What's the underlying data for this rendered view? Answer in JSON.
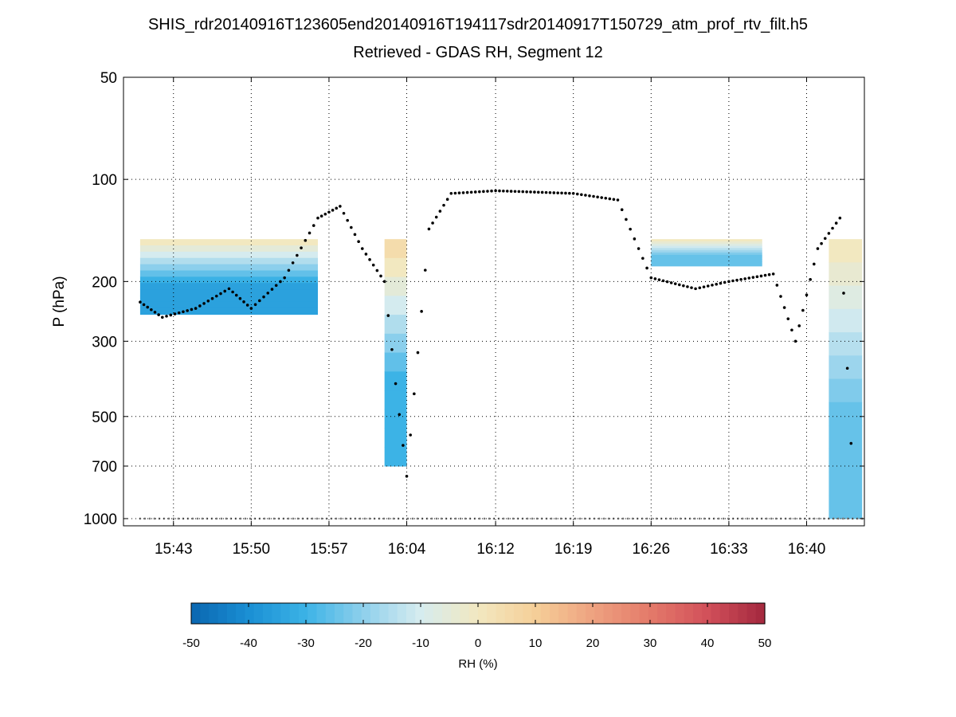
{
  "chart_data": {
    "type": "heatmap",
    "title": "SHIS_rdr20140916T123605end20140916T194117sdr20140917T150729_atm_prof_rtv_filt.h5",
    "subtitle": "Retrieved - GDAS RH, Segment 12",
    "ylabel": "P (hPa)",
    "y_scale": "log",
    "y_reversed": true,
    "ylim": [
      50,
      1050
    ],
    "y_ticks": [
      50,
      100,
      200,
      300,
      500,
      700,
      1000
    ],
    "x_ticks": [
      "15:43",
      "15:50",
      "15:57",
      "16:04",
      "16:12",
      "16:19",
      "16:26",
      "16:33",
      "16:40"
    ],
    "grid": true,
    "colorbar": {
      "label": "RH (%)",
      "range": [
        -50,
        50
      ],
      "ticks": [
        -50,
        -40,
        -30,
        -20,
        -10,
        0,
        10,
        20,
        30,
        40,
        50
      ],
      "colors": [
        "#0a66b0",
        "#1a8fd4",
        "#3cb3e6",
        "#8fd0ec",
        "#d6ecef",
        "#f2e8c0",
        "#f5cf98",
        "#eea280",
        "#e47a6a",
        "#d2505a",
        "#a3283e"
      ]
    },
    "heatmap_blocks": [
      {
        "x_range": [
          "15:40",
          "15:56"
        ],
        "p_range": [
          150,
          250
        ],
        "rh": -35,
        "note_top": 0
      },
      {
        "x_range": [
          "16:02",
          "16:04"
        ],
        "p_range": [
          150,
          700
        ],
        "rh": -30,
        "note_top": 5
      },
      {
        "x_range": [
          "16:26",
          "16:36"
        ],
        "p_range": [
          150,
          180
        ],
        "rh": -25,
        "note_top": 0
      },
      {
        "x_range": [
          "16:42",
          "16:45"
        ],
        "p_range": [
          150,
          1000
        ],
        "rh": -25,
        "note_top": 0
      }
    ],
    "series": [
      {
        "name": "",
        "marker": "black dots",
        "points": [
          [
            "15:40",
            230
          ],
          [
            "15:42",
            255
          ],
          [
            "15:45",
            240
          ],
          [
            "15:48",
            210
          ],
          [
            "15:50",
            240
          ],
          [
            "15:53",
            195
          ],
          [
            "15:56",
            130
          ],
          [
            "15:58",
            120
          ],
          [
            "16:00",
            160
          ],
          [
            "16:02",
            200
          ],
          [
            "16:03",
            400
          ],
          [
            "16:04",
            750
          ],
          [
            "16:06",
            140
          ],
          [
            "16:08",
            110
          ],
          [
            "16:12",
            108
          ],
          [
            "16:19",
            110
          ],
          [
            "16:23",
            115
          ],
          [
            "16:26",
            195
          ],
          [
            "16:30",
            210
          ],
          [
            "16:33",
            200
          ],
          [
            "16:37",
            190
          ],
          [
            "16:39",
            300
          ],
          [
            "16:41",
            160
          ],
          [
            "16:43",
            130
          ],
          [
            "16:44",
            600
          ]
        ]
      },
      {
        "name": "",
        "marker": "gray dots",
        "points": [
          [
            "15:40",
            1000
          ],
          [
            "16:45",
            1000
          ]
        ]
      }
    ]
  }
}
